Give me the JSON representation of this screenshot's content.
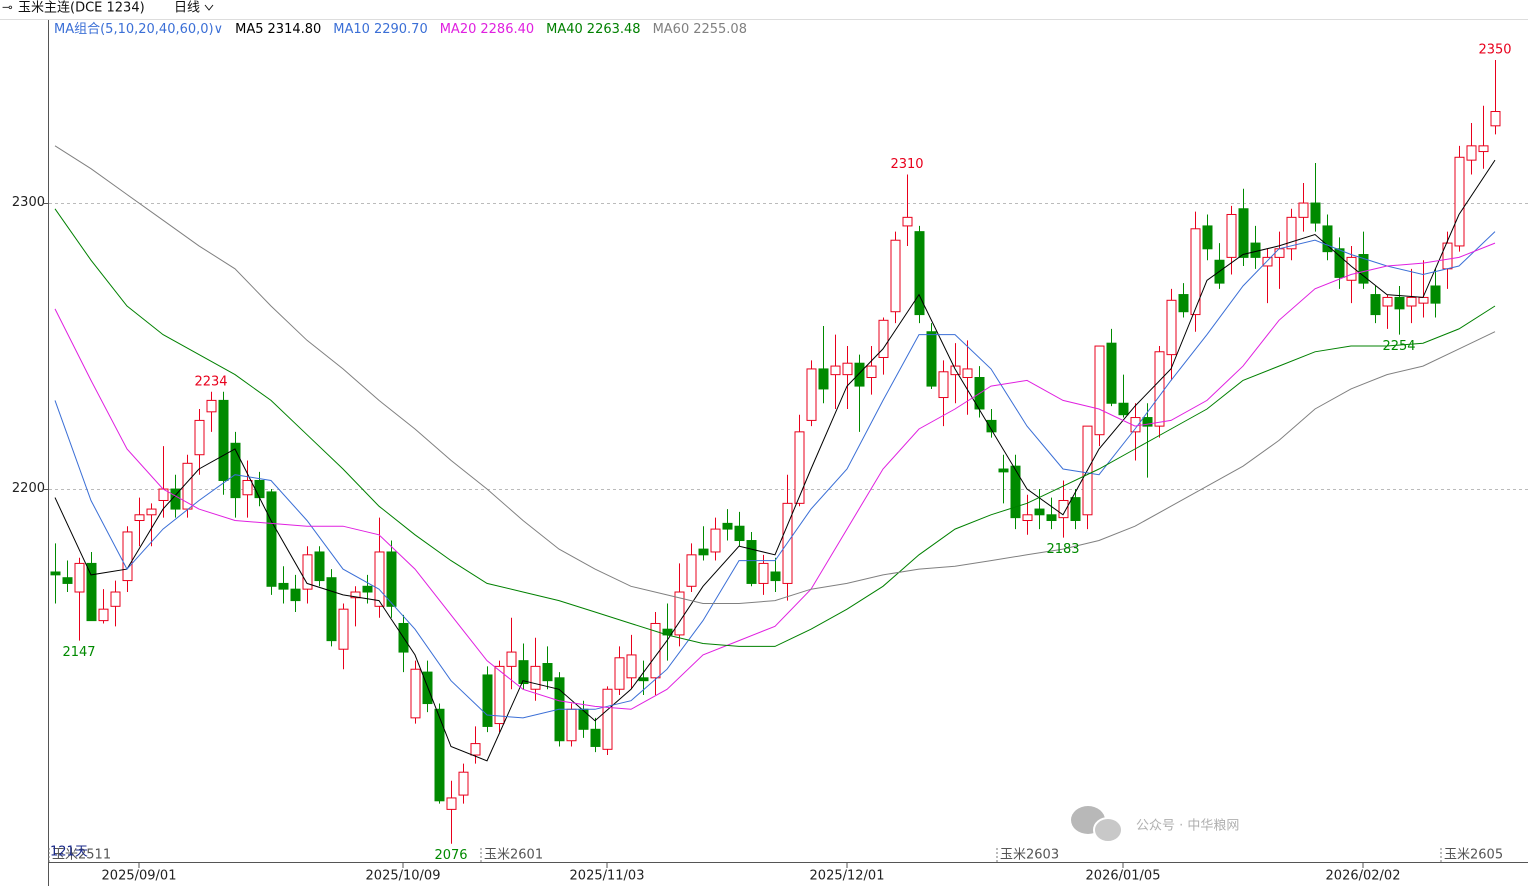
{
  "chart_data": {
    "type": "candlestick",
    "title": "玉米主连(DCE 1234)",
    "period": "日线",
    "ma_group": "MA组合(5,10,20,40,60,0)",
    "days_label": "121天",
    "up_color": "#e8001c",
    "down_color": "#008a00",
    "grid": true,
    "ylim": [
      2069.6,
      2364
    ],
    "yticks": [
      2200,
      2300
    ],
    "xticks": [
      {
        "value": 7,
        "label": "2025/09/01"
      },
      {
        "value": 29,
        "label": "2025/10/09"
      },
      {
        "value": 46,
        "label": "2025/11/03"
      },
      {
        "value": 66,
        "label": "2025/12/01"
      },
      {
        "value": 89,
        "label": "2026/01/05"
      },
      {
        "value": 109,
        "label": "2026/02/02"
      }
    ],
    "candles": {
      "open": [
        2171,
        2169,
        2164,
        2174,
        2154,
        2159,
        2168,
        2189,
        2191,
        2196,
        2200,
        2193,
        2212,
        2227,
        2231,
        2216,
        2198,
        2203,
        2199,
        2167,
        2165,
        2165,
        2178,
        2169,
        2144,
        2162,
        2166,
        2159,
        2178,
        2153,
        2120,
        2136,
        2123,
        2088,
        2093,
        2107,
        2135,
        2118,
        2138,
        2140,
        2130,
        2139,
        2134,
        2112,
        2123,
        2116,
        2109,
        2130,
        2134,
        2134,
        2134,
        2151,
        2149,
        2166,
        2179,
        2178,
        2188,
        2187,
        2182,
        2167,
        2171,
        2167,
        2195,
        2224,
        2242,
        2240,
        2240,
        2244,
        2239,
        2246,
        2262,
        2292,
        2290,
        2255,
        2232,
        2240,
        2239,
        2239,
        2224,
        2207,
        2208,
        2189,
        2193,
        2191,
        2190,
        2197,
        2191,
        2219,
        2251,
        2230,
        2220,
        2225,
        2222,
        2247,
        2268,
        2261,
        2292,
        2280,
        2281,
        2298,
        2286,
        2278,
        2281,
        2284,
        2295,
        2300,
        2292,
        2284,
        2273,
        2282,
        2268,
        2264,
        2267,
        2264,
        2265,
        2271,
        2277,
        2285,
        2315,
        2318,
        2327
      ],
      "high": [
        2181,
        2175,
        2176,
        2178,
        2165,
        2168,
        2187,
        2197,
        2195,
        2215,
        2205,
        2212,
        2228,
        2234,
        2234,
        2220,
        2210,
        2206,
        2200,
        2173,
        2170,
        2180,
        2180,
        2172,
        2160,
        2166,
        2170,
        2190,
        2182,
        2156,
        2140,
        2140,
        2125,
        2098,
        2104,
        2117,
        2138,
        2140,
        2155,
        2146,
        2148,
        2145,
        2136,
        2125,
        2126,
        2120,
        2131,
        2145,
        2149,
        2140,
        2157,
        2160,
        2174,
        2181,
        2187,
        2190,
        2193,
        2192,
        2185,
        2177,
        2176,
        2205,
        2226,
        2245,
        2257,
        2254,
        2250,
        2247,
        2250,
        2260,
        2290,
        2310,
        2292,
        2258,
        2245,
        2251,
        2252,
        2243,
        2228,
        2212,
        2212,
        2198,
        2200,
        2197,
        2203,
        2200,
        2222,
        2250,
        2256,
        2240,
        2230,
        2230,
        2250,
        2270,
        2272,
        2297,
        2296,
        2286,
        2299,
        2305,
        2292,
        2284,
        2290,
        2298,
        2307,
        2314,
        2296,
        2288,
        2285,
        2290,
        2271,
        2268,
        2271,
        2277,
        2280,
        2277,
        2290,
        2320,
        2328,
        2334,
        2350
      ],
      "low": [
        2160,
        2164,
        2147,
        2155,
        2153,
        2152,
        2164,
        2180,
        2180,
        2190,
        2190,
        2190,
        2205,
        2220,
        2198,
        2190,
        2190,
        2194,
        2163,
        2160,
        2157,
        2160,
        2166,
        2145,
        2137,
        2152,
        2160,
        2155,
        2155,
        2136,
        2118,
        2122,
        2090,
        2076,
        2090,
        2104,
        2115,
        2115,
        2130,
        2130,
        2126,
        2130,
        2110,
        2110,
        2113,
        2108,
        2107,
        2128,
        2130,
        2128,
        2128,
        2140,
        2145,
        2164,
        2175,
        2175,
        2182,
        2180,
        2166,
        2163,
        2164,
        2161,
        2194,
        2222,
        2230,
        2228,
        2228,
        2220,
        2233,
        2240,
        2258,
        2285,
        2258,
        2235,
        2222,
        2230,
        2226,
        2225,
        2218,
        2195,
        2186,
        2184,
        2186,
        2186,
        2183,
        2186,
        2186,
        2215,
        2229,
        2225,
        2210,
        2204,
        2218,
        2238,
        2260,
        2255,
        2280,
        2270,
        2275,
        2278,
        2277,
        2265,
        2270,
        2280,
        2290,
        2290,
        2280,
        2270,
        2265,
        2270,
        2258,
        2256,
        2254,
        2258,
        2260,
        2260,
        2270,
        2283,
        2310,
        2312,
        2324
      ],
      "close": [
        2170,
        2167,
        2174,
        2154,
        2158,
        2164,
        2185,
        2191,
        2193,
        2200,
        2193,
        2209,
        2224,
        2231,
        2203,
        2197,
        2203,
        2197,
        2166,
        2165,
        2161,
        2177,
        2168,
        2147,
        2158,
        2164,
        2164,
        2178,
        2159,
        2143,
        2137,
        2125,
        2091,
        2092,
        2101,
        2111,
        2117,
        2138,
        2143,
        2132,
        2138,
        2133,
        2112,
        2123,
        2116,
        2110,
        2130,
        2141,
        2142,
        2133,
        2153,
        2149,
        2164,
        2177,
        2177,
        2186,
        2186,
        2182,
        2167,
        2174,
        2168,
        2195,
        2220,
        2242,
        2235,
        2243,
        2244,
        2236,
        2243,
        2259,
        2287,
        2295,
        2261,
        2236,
        2241,
        2243,
        2242,
        2228,
        2220,
        2206,
        2190,
        2191,
        2191,
        2189,
        2196,
        2189,
        2222,
        2250,
        2230,
        2226,
        2225,
        2222,
        2248,
        2266,
        2262,
        2291,
        2284,
        2272,
        2296,
        2281,
        2281,
        2281,
        2284,
        2295,
        2300,
        2293,
        2283,
        2274,
        2281,
        2272,
        2261,
        2267,
        2263,
        2267,
        2267,
        2265,
        2286,
        2316,
        2320,
        2320,
        2332
      ]
    },
    "ma_x": [
      0,
      3,
      6,
      9,
      12,
      15,
      18,
      21,
      24,
      27,
      30,
      33,
      36,
      39,
      42,
      45,
      48,
      51,
      54,
      57,
      60,
      63,
      66,
      69,
      72,
      75,
      78,
      81,
      84,
      87,
      90,
      93,
      96,
      99,
      102,
      105,
      108,
      111,
      114,
      117,
      120
    ],
    "series": [
      {
        "name": "MA5",
        "latest": "2314.80",
        "color": "#000000",
        "values": [
          2197,
          2170,
          2172,
          2193,
          2207,
          2214,
          2189,
          2167,
          2163,
          2161,
          2142,
          2110,
          2105,
          2133,
          2130,
          2119,
          2130,
          2147,
          2166,
          2180,
          2177,
          2207,
          2236,
          2249,
          2268,
          2242,
          2221,
          2200,
          2191,
          2214,
          2229,
          2242,
          2273,
          2282,
          2285,
          2289,
          2278,
          2268,
          2267,
          2296,
          2315
        ]
      },
      {
        "name": "MA10",
        "latest": "2290.70",
        "color": "#3b6fd6",
        "values": [
          2231,
          2196,
          2172,
          2186,
          2196,
          2205,
          2203,
          2189,
          2172,
          2165,
          2151,
          2133,
          2121,
          2120,
          2123,
          2123,
          2126,
          2137,
          2154,
          2175,
          2175,
          2193,
          2207,
          2231,
          2254,
          2254,
          2242,
          2222,
          2207,
          2205,
          2221,
          2238,
          2254,
          2271,
          2284,
          2287,
          2282,
          2278,
          2275,
          2278,
          2290
        ]
      },
      {
        "name": "MA20",
        "latest": "2286.40",
        "color": "#e020e0",
        "values": [
          2263,
          2238,
          2214,
          2200,
          2193,
          2189,
          2188,
          2187,
          2187,
          2184,
          2172,
          2156,
          2140,
          2130,
          2126,
          2124,
          2123,
          2130,
          2142,
          2147,
          2152,
          2165,
          2186,
          2207,
          2221,
          2228,
          2236,
          2238,
          2231,
          2228,
          2222,
          2224,
          2231,
          2243,
          2259,
          2270,
          2275,
          2278,
          2279,
          2281,
          2286
        ]
      },
      {
        "name": "MA40",
        "latest": "2263.48",
        "color": "#008000",
        "values": [
          2298,
          2280,
          2264,
          2254,
          2247,
          2240,
          2231,
          2219,
          2207,
          2194,
          2184,
          2175,
          2167,
          2164,
          2161,
          2157,
          2153,
          2149,
          2146,
          2145,
          2145,
          2151,
          2158,
          2166,
          2177,
          2186,
          2191,
          2195,
          2201,
          2207,
          2214,
          2221,
          2228,
          2238,
          2243,
          2248,
          2250,
          2250,
          2251,
          2256,
          2264
        ]
      },
      {
        "name": "MA60",
        "latest": "2255.08",
        "color": "#808080",
        "values": [
          2320,
          2312,
          2303,
          2294,
          2285,
          2277,
          2264,
          2252,
          2242,
          2231,
          2221,
          2210,
          2200,
          2189,
          2179,
          2172,
          2166,
          2163,
          2160,
          2160,
          2161,
          2165,
          2167,
          2170,
          2172,
          2173,
          2175,
          2177,
          2179,
          2182,
          2187,
          2194,
          2201,
          2208,
          2217,
          2228,
          2235,
          2240,
          2243,
          2249,
          2255
        ]
      }
    ],
    "annotations": [
      {
        "x": 2,
        "side": "low",
        "value": 2147
      },
      {
        "x": 13,
        "side": "high",
        "value": 2234
      },
      {
        "x": 33,
        "side": "low",
        "value": 2076
      },
      {
        "x": 71,
        "side": "high",
        "value": 2310
      },
      {
        "x": 84,
        "side": "low",
        "value": 2183
      },
      {
        "x": 112,
        "side": "low",
        "value": 2254
      },
      {
        "x": 120,
        "side": "high",
        "value": 2350
      }
    ],
    "contracts": [
      {
        "x": 0,
        "label": "玉米2511"
      },
      {
        "x": 36,
        "label": "玉米2601"
      },
      {
        "x": 79,
        "label": "玉米2603"
      },
      {
        "x": 116,
        "label": "玉米2605"
      }
    ],
    "watermark": "公众号 · 中华粮网"
  }
}
